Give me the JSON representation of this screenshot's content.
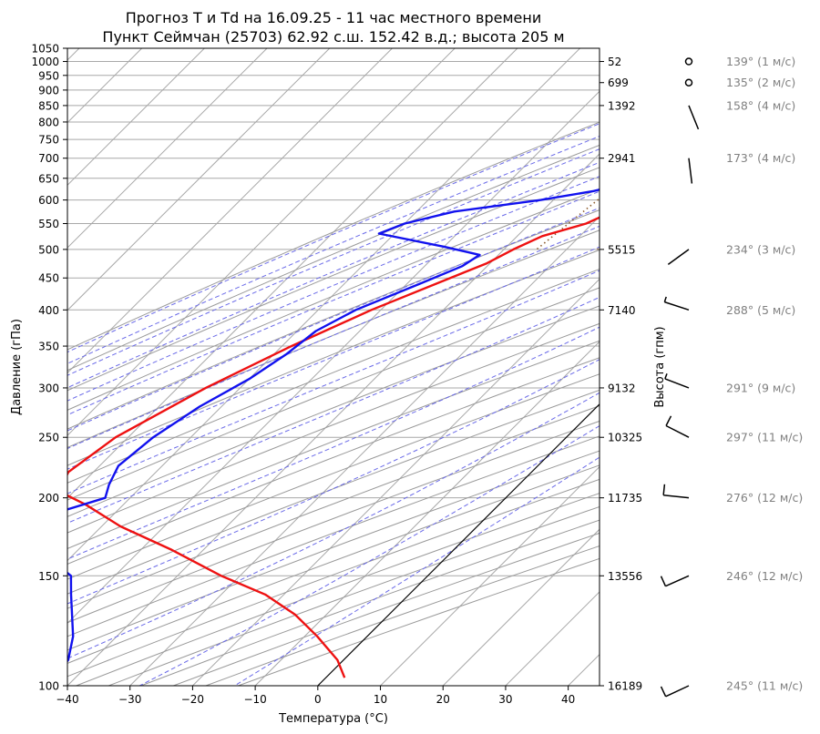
{
  "chart_data": {
    "type": "line",
    "title": "Прогноз T и Td на 16.09.25 - 11 час местного времени",
    "subtitle": "Пункт Сеймчан (25703) 62.92 с.ш. 152.42 в.д.; высота 205 м",
    "xlabel": "Температура (°C)",
    "ylabel": "Давление (гПа)",
    "y2label": "Высота (гпм)",
    "xlim": [
      -40,
      45
    ],
    "ylim": [
      1050,
      100
    ],
    "y_scale": "log",
    "grid": true,
    "x_ticks": [
      "−40",
      "−30",
      "−20",
      "−10",
      "0",
      "10",
      "20",
      "30",
      "40"
    ],
    "y_ticks": [
      "100",
      "150",
      "200",
      "250",
      "300",
      "350",
      "400",
      "450",
      "500",
      "550",
      "600",
      "650",
      "700",
      "750",
      "800",
      "850",
      "900",
      "950",
      "1000",
      "1050"
    ],
    "height_ticks": [
      {
        "p": 100,
        "label": "16189"
      },
      {
        "p": 150,
        "label": "13556"
      },
      {
        "p": 200,
        "label": "11735"
      },
      {
        "p": 250,
        "label": "10325"
      },
      {
        "p": 300,
        "label": "9132"
      },
      {
        "p": 400,
        "label": "7140"
      },
      {
        "p": 500,
        "label": "5515"
      },
      {
        "p": 700,
        "label": "2941"
      },
      {
        "p": 850,
        "label": "1392"
      },
      {
        "p": 925,
        "label": "699"
      },
      {
        "p": 1000,
        "label": "52"
      }
    ],
    "series": [
      {
        "color": "#ee1111",
        "points": [
          [
            1000,
            -3.5
          ],
          [
            975,
            -4.0
          ],
          [
            950,
            -4.0
          ],
          [
            925,
            -4.5
          ],
          [
            900,
            -6.0
          ],
          [
            875,
            -8.0
          ],
          [
            850,
            -9.5
          ],
          [
            800,
            -12.5
          ],
          [
            750,
            -15.5
          ],
          [
            700,
            -19.0
          ],
          [
            650,
            -22.0
          ],
          [
            600,
            -26.5
          ],
          [
            550,
            -31.0
          ],
          [
            525,
            -36.0
          ],
          [
            500,
            -38.5
          ],
          [
            475,
            -40.5
          ],
          [
            450,
            -44.0
          ],
          [
            400,
            -51.5
          ],
          [
            350,
            -58.5
          ],
          [
            300,
            -65.5
          ],
          [
            250,
            -72.0
          ],
          [
            220,
            -74.0
          ],
          [
            205,
            -72.5
          ],
          [
            195,
            -66.0
          ],
          [
            180,
            -57.0
          ],
          [
            165,
            -45.0
          ],
          [
            150,
            -33.0
          ],
          [
            140,
            -23.0
          ],
          [
            130,
            -15.0
          ],
          [
            120,
            -8.0
          ],
          [
            110,
            -1.0
          ],
          [
            103,
            3.0
          ]
        ]
      },
      {
        "color": "#1111ee",
        "points": [
          [
            1000,
            -10.5
          ],
          [
            975,
            -11.0
          ],
          [
            950,
            -11.5
          ],
          [
            925,
            -13.0
          ],
          [
            900,
            -14.0
          ],
          [
            850,
            -15.5
          ],
          [
            800,
            -18.5
          ],
          [
            750,
            -22.5
          ],
          [
            700,
            -24.5
          ],
          [
            650,
            -28.5
          ],
          [
            620,
            -35.0
          ],
          [
            600,
            -42.0
          ],
          [
            575,
            -54.0
          ],
          [
            550,
            -60.0
          ],
          [
            530,
            -62.5
          ],
          [
            505,
            -50.0
          ],
          [
            490,
            -43.0
          ],
          [
            470,
            -44.0
          ],
          [
            440,
            -48.0
          ],
          [
            400,
            -54.0
          ],
          [
            370,
            -57.0
          ],
          [
            340,
            -58.0
          ],
          [
            310,
            -60.0
          ],
          [
            280,
            -63.5
          ],
          [
            250,
            -66.0
          ],
          [
            225,
            -67.0
          ],
          [
            210,
            -65.5
          ],
          [
            200,
            -64.0
          ],
          [
            190,
            -69.0
          ],
          [
            182,
            -74.0
          ],
          [
            175,
            -72.0
          ],
          [
            150,
            -57.0
          ],
          [
            140,
            -54.0
          ],
          [
            120,
            -47.0
          ],
          [
            110,
            -44.0
          ],
          [
            100,
            -43.0
          ]
        ]
      }
    ],
    "wind_profile": [
      {
        "p": 100,
        "label": "245° (11 м/с)"
      },
      {
        "p": 150,
        "label": "246° (12 м/с)"
      },
      {
        "p": 200,
        "label": "276° (12 м/с)"
      },
      {
        "p": 250,
        "label": "297° (11 м/с)"
      },
      {
        "p": 300,
        "label": "291° (9 м/с)"
      },
      {
        "p": 400,
        "label": "288° (5 м/с)"
      },
      {
        "p": 500,
        "label": "234° (3 м/с)"
      },
      {
        "p": 700,
        "label": "173° (4 м/с)"
      },
      {
        "p": 850,
        "label": "158° (4 м/с)"
      },
      {
        "p": 925,
        "label": "135° (2 м/с)"
      },
      {
        "p": 1000,
        "label": "139° (1 м/с)"
      }
    ],
    "colors": {
      "temperature": "#ee1111",
      "dewpoint": "#1111ee",
      "grid": "#a8a8a8",
      "dry_adiabats": "#9a9a9a",
      "moist_adiabats": "#6a6ae8",
      "mixing_ratio": "#8b5a2b",
      "wind_label": "#808080"
    }
  }
}
